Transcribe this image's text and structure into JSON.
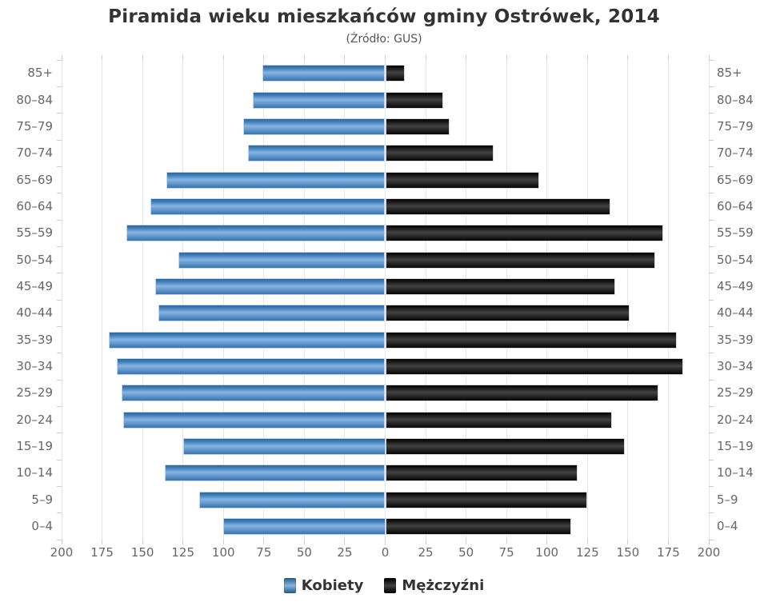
{
  "title": "Piramida wieku mieszkańców gminy Ostrówek, 2014",
  "subtitle": "(Źródło: GUS)",
  "colors": {
    "background": "#ffffff",
    "title_text": "#333333",
    "axis_text": "#666666",
    "gridline": "#e4e4ea",
    "tick": "#cccccc",
    "female_bar": "#4a86c2",
    "male_bar": "#1a1a1a"
  },
  "legend": {
    "items": [
      {
        "label": "Kobiety",
        "color_top": "#2d6394",
        "color_mid": "#86b4e2"
      },
      {
        "label": "Mężczyźni",
        "color_top": "#000000",
        "color_mid": "#424242"
      }
    ]
  },
  "chart_data": {
    "type": "bar",
    "variant": "population-pyramid",
    "title": "Piramida wieku mieszkańców gminy Ostrówek, 2014",
    "subtitle": "(Źródło: GUS)",
    "xlabel": "",
    "ylabel": "",
    "xlim": [
      -200,
      200
    ],
    "xmax": 200,
    "grid": true,
    "legend_position": "bottom",
    "categories": [
      "85+",
      "80–84",
      "75–79",
      "70–74",
      "65–69",
      "60–64",
      "55–59",
      "50–54",
      "45–49",
      "40–44",
      "35–39",
      "30–34",
      "25–29",
      "20–24",
      "15–19",
      "10–14",
      "5–9",
      "0–4"
    ],
    "series": [
      {
        "name": "Kobiety",
        "side": "left",
        "values": [
          76,
          82,
          88,
          85,
          135,
          145,
          160,
          128,
          142,
          140,
          171,
          166,
          163,
          162,
          125,
          136,
          115,
          100
        ]
      },
      {
        "name": "Mężczyźni",
        "side": "right",
        "values": [
          12,
          36,
          40,
          67,
          95,
          139,
          172,
          167,
          142,
          151,
          180,
          184,
          169,
          140,
          148,
          119,
          125,
          115
        ]
      }
    ],
    "x_tick_values": [
      -200,
      -175,
      -150,
      -125,
      -100,
      -75,
      -50,
      -25,
      0,
      25,
      50,
      75,
      100,
      125,
      150,
      175,
      200
    ],
    "x_tick_labels": [
      "200",
      "175",
      "150",
      "125",
      "100",
      "75",
      "50",
      "25",
      "0",
      "25",
      "50",
      "75",
      "100",
      "125",
      "150",
      "175",
      "200"
    ]
  }
}
